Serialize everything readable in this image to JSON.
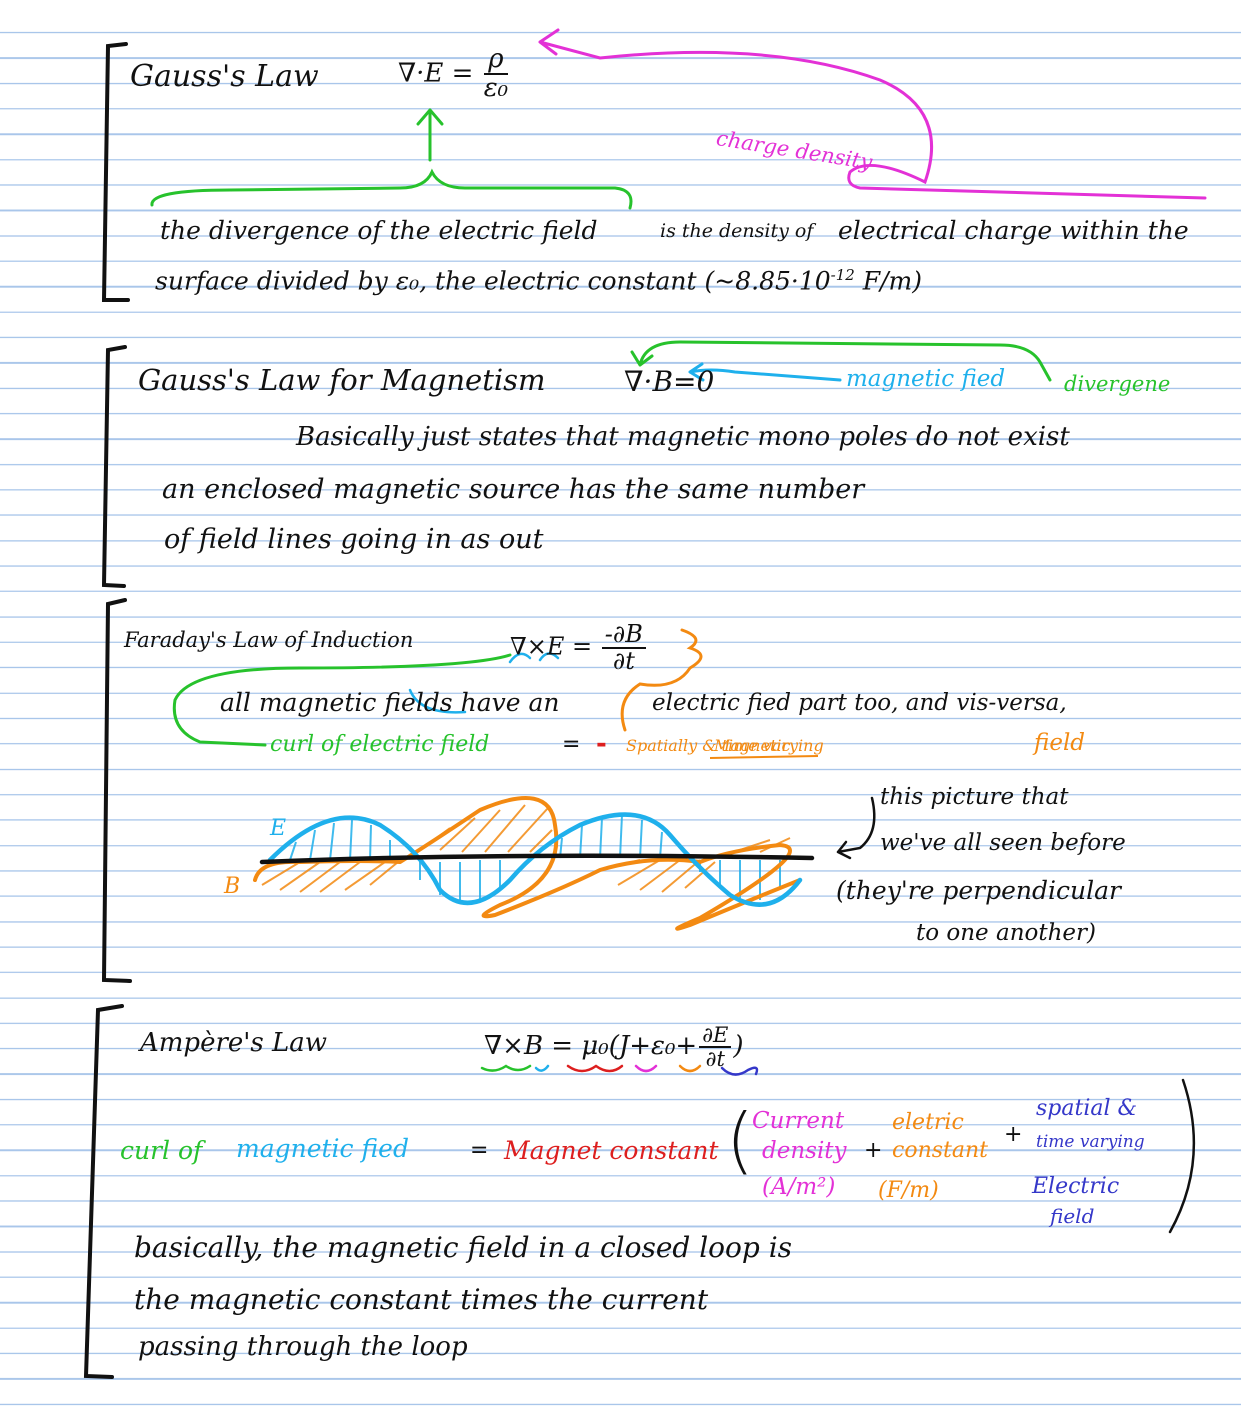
{
  "colors": {
    "ink": "#111111",
    "magenta": "#e331d6",
    "green": "#27c22c",
    "cyan": "#1fb0ec",
    "orange": "#f38a12",
    "red": "#dd1f1f",
    "blue": "#3538c9",
    "rule": "#a9c6ea"
  },
  "gauss": {
    "title": "Gauss's Law",
    "eq_lhs": "∇·E =",
    "eq_num": "ρ",
    "eq_den": "ε₀",
    "note_charge": "charge density",
    "line1_a": "the divergence of the electric field",
    "line1_b": "is the density of",
    "line1_c": "electrical charge within the",
    "line2_a": "surface divided by ε₀, the electric constant",
    "line2_b": "(~8.85·10",
    "line2_exp": "-12",
    "line2_c": "F/m)"
  },
  "gauss_mag": {
    "title": "Gauss's Law for Magnetism",
    "eq": "∇·B=0",
    "label_field": "magnetic fied",
    "label_div": "divergene",
    "line1": "Basically just states that magnetic mono poles do not exist",
    "line2": "an enclosed magnetic source has the same number",
    "line3": "of field lines going in as out"
  },
  "faraday": {
    "title": "Faraday's Law of Induction",
    "eq_lhs": "∇×E =",
    "eq_num": "-∂B",
    "eq_den": "∂t",
    "line1_a": "all magnetic fields have an",
    "line1_b": "electric fied part too, and vis-versa,",
    "curl_label": "curl of electric field",
    "equals": "=",
    "minus": "-",
    "rhs_a": "Spatially & time varying",
    "rhs_b": "Magnetic",
    "rhs_c": "field",
    "wave_e": "E",
    "wave_b": "B",
    "note1": "this picture that",
    "note2": "we've all seen before",
    "note3": "(they're perpendicular",
    "note4": "to one another)"
  },
  "ampere": {
    "title": "Ampère's Law",
    "eq_lhs": "∇×B = μ₀",
    "eq_mid": "(J+ε₀+",
    "eq_num": "∂E",
    "eq_den": "∂t",
    "eq_close": ")",
    "curl_a": "curl of",
    "curl_b": "magnetic fied",
    "eq_sign": "=",
    "mag_const": "Magnet constant",
    "current_a": "Current",
    "current_b": "density",
    "current_unit": "(A/m²)",
    "plus1": "+",
    "elec_a": "eletric",
    "elec_b": "constant",
    "elec_unit": "(F/m)",
    "plus2": "+",
    "spatial_a": "spatial &",
    "spatial_b": "time varying",
    "spatial_c": "Electric",
    "spatial_d": "field",
    "line1": "basically, the magnetic field in a closed loop is",
    "line2": "the magnetic constant times the current",
    "line3": "passing through the loop"
  }
}
